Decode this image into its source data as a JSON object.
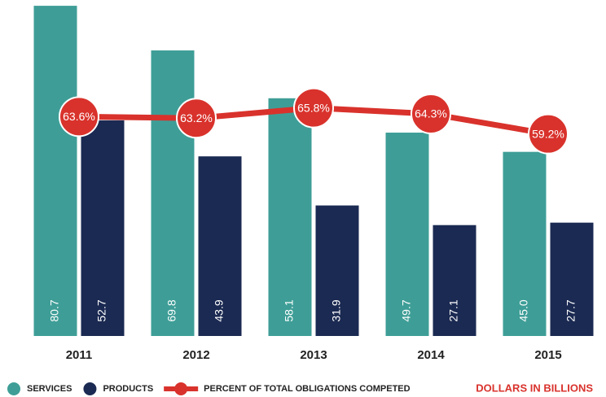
{
  "chart_data": {
    "type": "bar",
    "categories": [
      "2011",
      "2012",
      "2013",
      "2014",
      "2015"
    ],
    "series": [
      {
        "name": "SERVICES",
        "color": "#3e9e97",
        "values": [
          80.7,
          69.8,
          58.1,
          49.7,
          45.0
        ],
        "value_labels": [
          "80.7",
          "69.8",
          "58.1",
          "49.7",
          "45.0"
        ]
      },
      {
        "name": "PRODUCTS",
        "color": "#1b2a52",
        "values": [
          52.7,
          43.9,
          31.9,
          27.1,
          27.7
        ],
        "value_labels": [
          "52.7",
          "43.9",
          "31.9",
          "27.1",
          "27.7"
        ]
      },
      {
        "name": "PERCENT OF TOTAL OBLIGATIONS COMPETED",
        "color": "#d9322c",
        "type": "line",
        "axis": "y2",
        "values": [
          63.6,
          63.2,
          65.8,
          64.3,
          59.2
        ],
        "value_labels": [
          "63.6%",
          "63.2%",
          "65.8%",
          "64.3%",
          "59.2%"
        ]
      }
    ],
    "ylim": [
      0,
      81
    ],
    "y2lim": [
      8,
      92
    ],
    "annotation": "DOLLARS IN BILLIONS"
  }
}
